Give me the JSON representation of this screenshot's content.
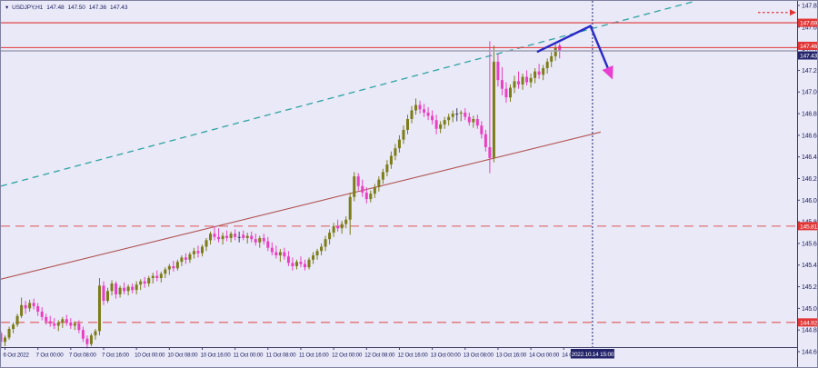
{
  "header": {
    "collapse_icon": "▾",
    "symbol_period": "USDJPY,H1",
    "open": "147.48",
    "high": "147.50",
    "low": "147.36",
    "close": "147.43"
  },
  "price_axis": {
    "ticks": [
      "147.85",
      "147.65",
      "147.45",
      "147.25",
      "147.05",
      "146.85",
      "146.65",
      "146.45",
      "146.25",
      "146.05",
      "145.85",
      "145.65",
      "145.45",
      "145.25",
      "145.05",
      "144.85",
      "144.65"
    ],
    "resistance_label": "147.69",
    "ask_label": "147.46",
    "bid_label": "147.43",
    "mid_support_label": "145.81",
    "low_support_label": "144.92"
  },
  "time_axis": {
    "ticks": [
      {
        "label": "6 Oct 2022",
        "index": 1
      },
      {
        "label": "7 Oct 00:00",
        "index": 9
      },
      {
        "label": "7 Oct 08:00",
        "index": 17
      },
      {
        "label": "7 Oct 16:00",
        "index": 25
      },
      {
        "label": "10 Oct 00:00",
        "index": 33
      },
      {
        "label": "10 Oct 08:00",
        "index": 41
      },
      {
        "label": "10 Oct 16:00",
        "index": 49
      },
      {
        "label": "11 Oct 00:00",
        "index": 57
      },
      {
        "label": "11 Oct 08:00",
        "index": 65
      },
      {
        "label": "11 Oct 16:00",
        "index": 73
      },
      {
        "label": "12 Oct 00:00",
        "index": 81
      },
      {
        "label": "12 Oct 08:00",
        "index": 89
      },
      {
        "label": "12 Oct 16:00",
        "index": 97
      },
      {
        "label": "13 Oct 00:00",
        "index": 105
      },
      {
        "label": "13 Oct 08:00",
        "index": 113
      },
      {
        "label": "13 Oct 16:00",
        "index": 121
      },
      {
        "label": "14 Oct 00:00",
        "index": 129
      },
      {
        "label": "14 Oct 08:00",
        "index": 137
      }
    ]
  },
  "crosshair": {
    "index": 144,
    "time_label": "2022.10.14 15:00"
  },
  "colors": {
    "background": "#e9e9f8",
    "axis_border": "#3d3d66",
    "text": "#1c1c5e",
    "candle_up": "#7c7c18",
    "candle_down": "#ea3fc2",
    "candle_neutral": "#3d3d66",
    "level_red": "#e23535",
    "dashed_red": "#e05555",
    "bid_gray": "#a0a0b4",
    "trend_maroon": "#b25450",
    "trend_teal": "#2fa3a0",
    "arrow_blue": "#2929c8",
    "arrow_head_magenta": "#e83fd0",
    "label_box_navy": "#24246a",
    "label_text": "#ffffff"
  },
  "chart_data": {
    "type": "candlestick",
    "title": "USDJPY,H1",
    "current_ohlc": {
      "open": 147.48,
      "high": 147.5,
      "low": 147.36,
      "close": 147.43
    },
    "bid": 147.43,
    "ask": 147.46,
    "ylim": [
      144.65,
      147.85
    ],
    "y_tick_step": 0.2,
    "grid": false,
    "levels": [
      {
        "price": 147.69,
        "style": "solid",
        "label": "147.69"
      },
      {
        "price": 145.81,
        "style": "dashed",
        "label": "145.81"
      },
      {
        "price": 144.92,
        "style": "dashed",
        "label": "144.92"
      }
    ],
    "trendlines": [
      {
        "name": "ascending-support-line",
        "color_key": "trend_maroon",
        "dash": false,
        "from": {
          "index": 0,
          "price": 145.32
        },
        "to": {
          "index": 146,
          "price": 146.68
        }
      },
      {
        "name": "ascending-resistance-line",
        "color_key": "trend_teal",
        "dash": true,
        "from": {
          "index": 0,
          "price": 146.18
        },
        "to": {
          "index": 169,
          "price": 147.89
        }
      }
    ],
    "forecast_arrow": {
      "points": [
        {
          "index": 130.5,
          "price": 147.42
        },
        {
          "index": 143.5,
          "price": 147.66
        },
        {
          "index": 148.3,
          "price": 147.22
        }
      ]
    },
    "target_arrow": {
      "price": 147.785,
      "from_index": 184.3
    },
    "candles": [
      [
        144.82,
        144.84,
        144.68,
        144.74
      ],
      [
        144.74,
        144.8,
        144.7,
        144.78
      ],
      [
        144.78,
        144.88,
        144.76,
        144.86
      ],
      [
        144.86,
        144.92,
        144.82,
        144.9
      ],
      [
        144.9,
        145.0,
        144.88,
        144.98
      ],
      [
        144.98,
        145.15,
        144.96,
        145.08
      ],
      [
        145.08,
        145.12,
        145.0,
        145.05
      ],
      [
        145.05,
        145.13,
        145.02,
        145.1
      ],
      [
        145.1,
        145.14,
        145.04,
        145.07
      ],
      [
        145.07,
        145.1,
        144.98,
        145.02
      ],
      [
        145.02,
        145.06,
        144.94,
        144.97
      ],
      [
        144.97,
        145.0,
        144.9,
        144.93
      ],
      [
        144.93,
        144.98,
        144.88,
        144.91
      ],
      [
        144.91,
        144.96,
        144.86,
        144.89
      ],
      [
        144.89,
        144.94,
        144.84,
        144.92
      ],
      [
        144.92,
        144.97,
        144.87,
        144.95
      ],
      [
        144.95,
        144.99,
        144.89,
        144.92
      ],
      [
        144.92,
        144.96,
        144.86,
        144.89
      ],
      [
        144.89,
        144.93,
        144.85,
        144.91
      ],
      [
        144.91,
        144.94,
        144.82,
        144.85
      ],
      [
        144.85,
        144.88,
        144.74,
        144.77
      ],
      [
        144.77,
        144.8,
        144.68,
        144.72
      ],
      [
        144.72,
        144.82,
        144.7,
        144.8
      ],
      [
        144.8,
        144.86,
        144.76,
        144.84
      ],
      [
        144.84,
        145.33,
        144.8,
        145.26
      ],
      [
        145.26,
        145.3,
        145.08,
        145.12
      ],
      [
        145.12,
        145.24,
        145.1,
        145.21
      ],
      [
        145.21,
        145.31,
        145.17,
        145.28
      ],
      [
        145.28,
        145.3,
        145.14,
        145.18
      ],
      [
        145.18,
        145.26,
        145.15,
        145.24
      ],
      [
        145.24,
        145.29,
        145.18,
        145.21
      ],
      [
        145.21,
        145.27,
        145.17,
        145.25
      ],
      [
        145.25,
        145.28,
        145.19,
        145.22
      ],
      [
        145.22,
        145.3,
        145.18,
        145.27
      ],
      [
        145.27,
        145.32,
        145.22,
        145.3
      ],
      [
        145.3,
        145.34,
        145.24,
        145.28
      ],
      [
        145.28,
        145.35,
        145.25,
        145.33
      ],
      [
        145.33,
        145.38,
        145.28,
        145.35
      ],
      [
        145.35,
        145.4,
        145.3,
        145.33
      ],
      [
        145.33,
        145.39,
        145.29,
        145.37
      ],
      [
        145.37,
        145.43,
        145.33,
        145.41
      ],
      [
        145.41,
        145.46,
        145.36,
        145.44
      ],
      [
        145.44,
        145.49,
        145.39,
        145.42
      ],
      [
        145.42,
        145.5,
        145.4,
        145.48
      ],
      [
        145.48,
        145.54,
        145.44,
        145.52
      ],
      [
        145.52,
        145.56,
        145.46,
        145.5
      ],
      [
        145.5,
        145.57,
        145.47,
        145.55
      ],
      [
        145.55,
        145.61,
        145.51,
        145.58
      ],
      [
        145.58,
        145.63,
        145.52,
        145.56
      ],
      [
        145.56,
        145.64,
        145.53,
        145.62
      ],
      [
        145.62,
        145.7,
        145.58,
        145.68
      ],
      [
        145.68,
        145.76,
        145.64,
        145.74
      ],
      [
        145.74,
        145.81,
        145.68,
        145.71
      ],
      [
        145.71,
        145.79,
        145.66,
        145.69
      ],
      [
        145.69,
        145.75,
        145.64,
        145.72
      ],
      [
        145.72,
        145.77,
        145.67,
        145.7
      ],
      [
        145.7,
        145.76,
        145.66,
        145.74
      ],
      [
        145.74,
        145.78,
        145.68,
        145.71
      ],
      [
        145.71,
        145.76,
        145.66,
        145.71
      ],
      [
        145.73,
        145.77,
        145.68,
        145.7
      ],
      [
        145.7,
        145.75,
        145.65,
        145.72
      ],
      [
        145.72,
        145.76,
        145.66,
        145.69
      ],
      [
        145.69,
        145.74,
        145.63,
        145.66
      ],
      [
        145.66,
        145.72,
        145.61,
        145.7
      ],
      [
        145.7,
        145.74,
        145.64,
        145.67
      ],
      [
        145.67,
        145.71,
        145.58,
        145.61
      ],
      [
        145.61,
        145.66,
        145.54,
        145.57
      ],
      [
        145.57,
        145.63,
        145.51,
        145.54
      ],
      [
        145.54,
        145.6,
        145.48,
        145.57
      ],
      [
        145.57,
        145.61,
        145.5,
        145.53
      ],
      [
        145.53,
        145.58,
        145.44,
        145.47
      ],
      [
        145.47,
        145.52,
        145.4,
        145.44
      ],
      [
        145.44,
        145.5,
        145.41,
        145.48
      ],
      [
        145.48,
        145.53,
        145.43,
        145.46
      ],
      [
        145.46,
        145.5,
        145.4,
        145.43
      ],
      [
        145.43,
        145.52,
        145.41,
        145.5
      ],
      [
        145.5,
        145.57,
        145.46,
        145.54
      ],
      [
        145.54,
        145.6,
        145.5,
        145.58
      ],
      [
        145.58,
        145.65,
        145.54,
        145.62
      ],
      [
        145.62,
        145.72,
        145.58,
        145.69
      ],
      [
        145.69,
        145.78,
        145.64,
        145.75
      ],
      [
        145.75,
        145.84,
        145.71,
        145.81
      ],
      [
        145.81,
        145.87,
        145.76,
        145.79
      ],
      [
        145.79,
        145.86,
        145.74,
        145.83
      ],
      [
        145.83,
        145.9,
        145.79,
        145.87
      ],
      [
        145.87,
        146.12,
        145.73,
        146.08
      ],
      [
        146.08,
        146.31,
        146.04,
        146.27
      ],
      [
        146.27,
        146.3,
        146.14,
        146.18
      ],
      [
        146.18,
        146.24,
        146.08,
        146.12
      ],
      [
        146.12,
        146.17,
        146.02,
        146.06
      ],
      [
        146.06,
        146.14,
        146.03,
        146.11
      ],
      [
        146.11,
        146.2,
        146.07,
        146.17
      ],
      [
        146.17,
        146.27,
        146.13,
        146.24
      ],
      [
        146.24,
        146.34,
        146.2,
        146.31
      ],
      [
        146.31,
        146.42,
        146.27,
        146.38
      ],
      [
        146.38,
        146.5,
        146.34,
        146.46
      ],
      [
        146.46,
        146.57,
        146.42,
        146.53
      ],
      [
        146.53,
        146.65,
        146.49,
        146.61
      ],
      [
        146.61,
        146.74,
        146.57,
        146.7
      ],
      [
        146.7,
        146.84,
        146.66,
        146.8
      ],
      [
        146.8,
        146.92,
        146.76,
        146.88
      ],
      [
        146.88,
        146.99,
        146.84,
        146.93
      ],
      [
        146.93,
        146.97,
        146.85,
        146.89
      ],
      [
        146.89,
        146.94,
        146.82,
        146.86
      ],
      [
        146.86,
        146.91,
        146.79,
        146.83
      ],
      [
        146.83,
        146.88,
        146.75,
        146.79
      ],
      [
        146.79,
        146.84,
        146.66,
        146.71
      ],
      [
        146.71,
        146.78,
        146.67,
        146.75
      ],
      [
        146.75,
        146.82,
        146.71,
        146.79
      ],
      [
        146.79,
        146.85,
        146.74,
        146.82
      ],
      [
        146.82,
        146.88,
        146.77,
        146.85
      ],
      [
        146.85,
        146.9,
        146.78,
        146.85
      ],
      [
        146.85,
        146.88,
        146.78,
        146.86
      ],
      [
        146.86,
        146.9,
        146.79,
        146.82
      ],
      [
        146.82,
        146.86,
        146.74,
        146.77
      ],
      [
        146.77,
        146.83,
        146.72,
        146.8
      ],
      [
        146.8,
        146.84,
        146.71,
        146.74
      ],
      [
        146.74,
        146.78,
        146.62,
        146.66
      ],
      [
        146.66,
        146.7,
        146.5,
        146.54
      ],
      [
        146.54,
        147.52,
        146.3,
        146.44
      ],
      [
        146.44,
        147.48,
        146.4,
        147.33
      ],
      [
        147.33,
        147.4,
        147.1,
        147.16
      ],
      [
        147.16,
        147.28,
        147.02,
        147.08
      ],
      [
        147.08,
        147.14,
        146.95,
        147.0
      ],
      [
        147.0,
        147.12,
        146.96,
        147.09
      ],
      [
        147.09,
        147.2,
        147.04,
        147.15
      ],
      [
        147.15,
        147.24,
        147.08,
        147.12
      ],
      [
        147.12,
        147.22,
        147.07,
        147.19
      ],
      [
        147.19,
        147.25,
        147.11,
        147.14
      ],
      [
        147.14,
        147.22,
        147.09,
        147.18
      ],
      [
        147.18,
        147.27,
        147.13,
        147.24
      ],
      [
        147.24,
        147.31,
        147.17,
        147.21
      ],
      [
        147.21,
        147.3,
        147.16,
        147.27
      ],
      [
        147.27,
        147.36,
        147.22,
        147.33
      ],
      [
        147.33,
        147.42,
        147.28,
        147.38
      ],
      [
        147.38,
        147.49,
        147.34,
        147.46
      ],
      [
        147.48,
        147.5,
        147.36,
        147.43
      ]
    ]
  }
}
